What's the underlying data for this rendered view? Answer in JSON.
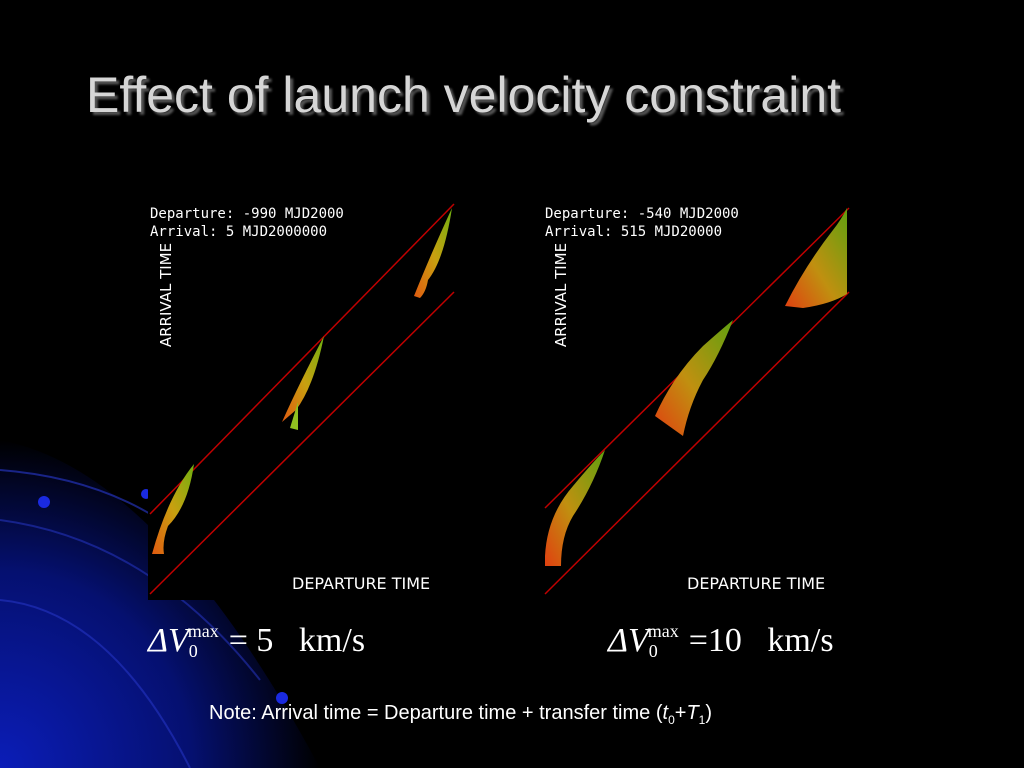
{
  "slide": {
    "title": "Effect of launch velocity constraint",
    "note": {
      "prefix": "Note: Arrival time = Departure time + transfer time (",
      "t": "t",
      "t_sub": "0",
      "plus": "+",
      "T": "T",
      "T_sub": "1",
      "suffix": ")"
    }
  },
  "plots": {
    "left": {
      "departure": "Departure: -990 MJD2000",
      "arrival": "Arrival: 5 MJD2000000",
      "ylabel": "ARRIVAL TIME",
      "xlabel": "DEPARTURE TIME"
    },
    "right": {
      "departure": "Departure: -540 MJD2000",
      "arrival": "Arrival: 515 MJD20000",
      "ylabel": "ARRIVAL TIME",
      "xlabel": "DEPARTURE TIME"
    }
  },
  "formulas": {
    "left": {
      "delta_v": "ΔV",
      "sub": "0",
      "sup": "max",
      "equals": "= 5",
      "unit": "km/s"
    },
    "right": {
      "delta_v": "ΔV",
      "sub": "0",
      "sup": "max",
      "equals": "=10",
      "unit": "km/s"
    }
  },
  "colors": {
    "background": "#000000",
    "band_lines": "#c00000",
    "decor_blue": "#0a1a9a"
  }
}
